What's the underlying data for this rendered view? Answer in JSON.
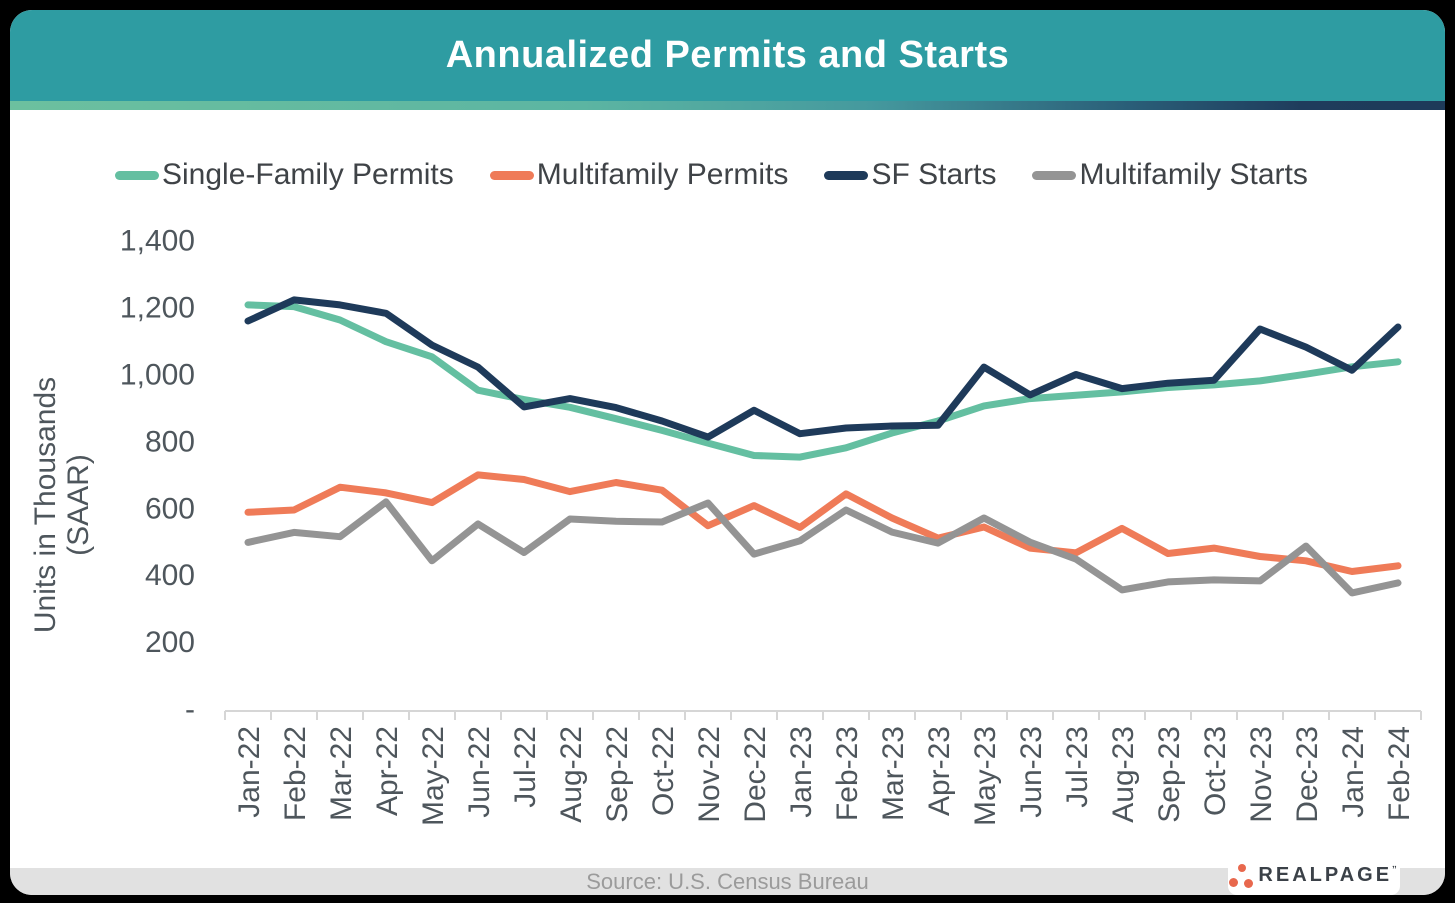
{
  "header": {
    "title": "Annualized Permits and Starts"
  },
  "footer": {
    "source": "Source: U.S. Census Bureau",
    "logo_text": "REALPAGE"
  },
  "colors": {
    "header_teal": "#2E9CA2",
    "gradient_left": "#6CC09F",
    "gradient_right": "#1E3A59",
    "axis_gray": "#D6D6D6",
    "tick_text": "#4E565C",
    "footer_bg": "#E1E1E1",
    "footer_text": "#9B9B9B",
    "logo_orange": "#E8684D"
  },
  "chart_data": {
    "type": "line",
    "title": "Annualized Permits and Starts",
    "xlabel": "",
    "ylabel": "Units in Thousands (SAAR)",
    "ylabel_line1": "Units in Thousands",
    "ylabel_line2": "(SAAR)",
    "legend_position": "top",
    "grid": false,
    "ylim": [
      0,
      1400
    ],
    "y_ticks": [
      {
        "label": "1,400",
        "value": 1400
      },
      {
        "label": "1,200",
        "value": 1200
      },
      {
        "label": "1,000",
        "value": 1000
      },
      {
        "label": "800",
        "value": 800
      },
      {
        "label": "600",
        "value": 600
      },
      {
        "label": "400",
        "value": 400
      },
      {
        "label": "200",
        "value": 200
      },
      {
        "label": "-",
        "value": 0
      }
    ],
    "x": [
      "Jan-22",
      "Feb-22",
      "Mar-22",
      "Apr-22",
      "May-22",
      "Jun-22",
      "Jul-22",
      "Aug-22",
      "Sep-22",
      "Oct-22",
      "Nov-22",
      "Dec-22",
      "Jan-23",
      "Feb-23",
      "Mar-23",
      "Apr-23",
      "May-23",
      "Jun-23",
      "Jul-23",
      "Aug-23",
      "Sep-23",
      "Oct-23",
      "Nov-23",
      "Dec-23",
      "Jan-24",
      "Feb-24"
    ],
    "series": [
      {
        "name": "Single-Family Permits",
        "color": "#64BFA1",
        "values": [
          1205,
          1200,
          1160,
          1095,
          1050,
          950,
          922,
          899,
          865,
          830,
          792,
          755,
          750,
          778,
          822,
          858,
          903,
          925,
          935,
          945,
          958,
          966,
          978,
          998,
          1020,
          1035
        ]
      },
      {
        "name": "Multifamily Permits",
        "color": "#EF7B58",
        "values": [
          585,
          592,
          660,
          643,
          614,
          697,
          683,
          647,
          674,
          651,
          545,
          605,
          540,
          640,
          568,
          508,
          541,
          478,
          464,
          537,
          462,
          478,
          453,
          440,
          408,
          425
        ]
      },
      {
        "name": "SF Starts",
        "color": "#1E3A5A",
        "values": [
          1157,
          1220,
          1205,
          1180,
          1085,
          1019,
          900,
          925,
          898,
          858,
          810,
          890,
          820,
          837,
          843,
          845,
          1019,
          936,
          997,
          955,
          971,
          980,
          1133,
          1079,
          1010,
          1139
        ]
      },
      {
        "name": "Multifamily Starts",
        "color": "#949494",
        "values": [
          495,
          525,
          512,
          616,
          440,
          550,
          465,
          565,
          558,
          556,
          613,
          460,
          500,
          592,
          526,
          493,
          568,
          496,
          445,
          353,
          377,
          383,
          380,
          484,
          344,
          374
        ]
      }
    ]
  }
}
